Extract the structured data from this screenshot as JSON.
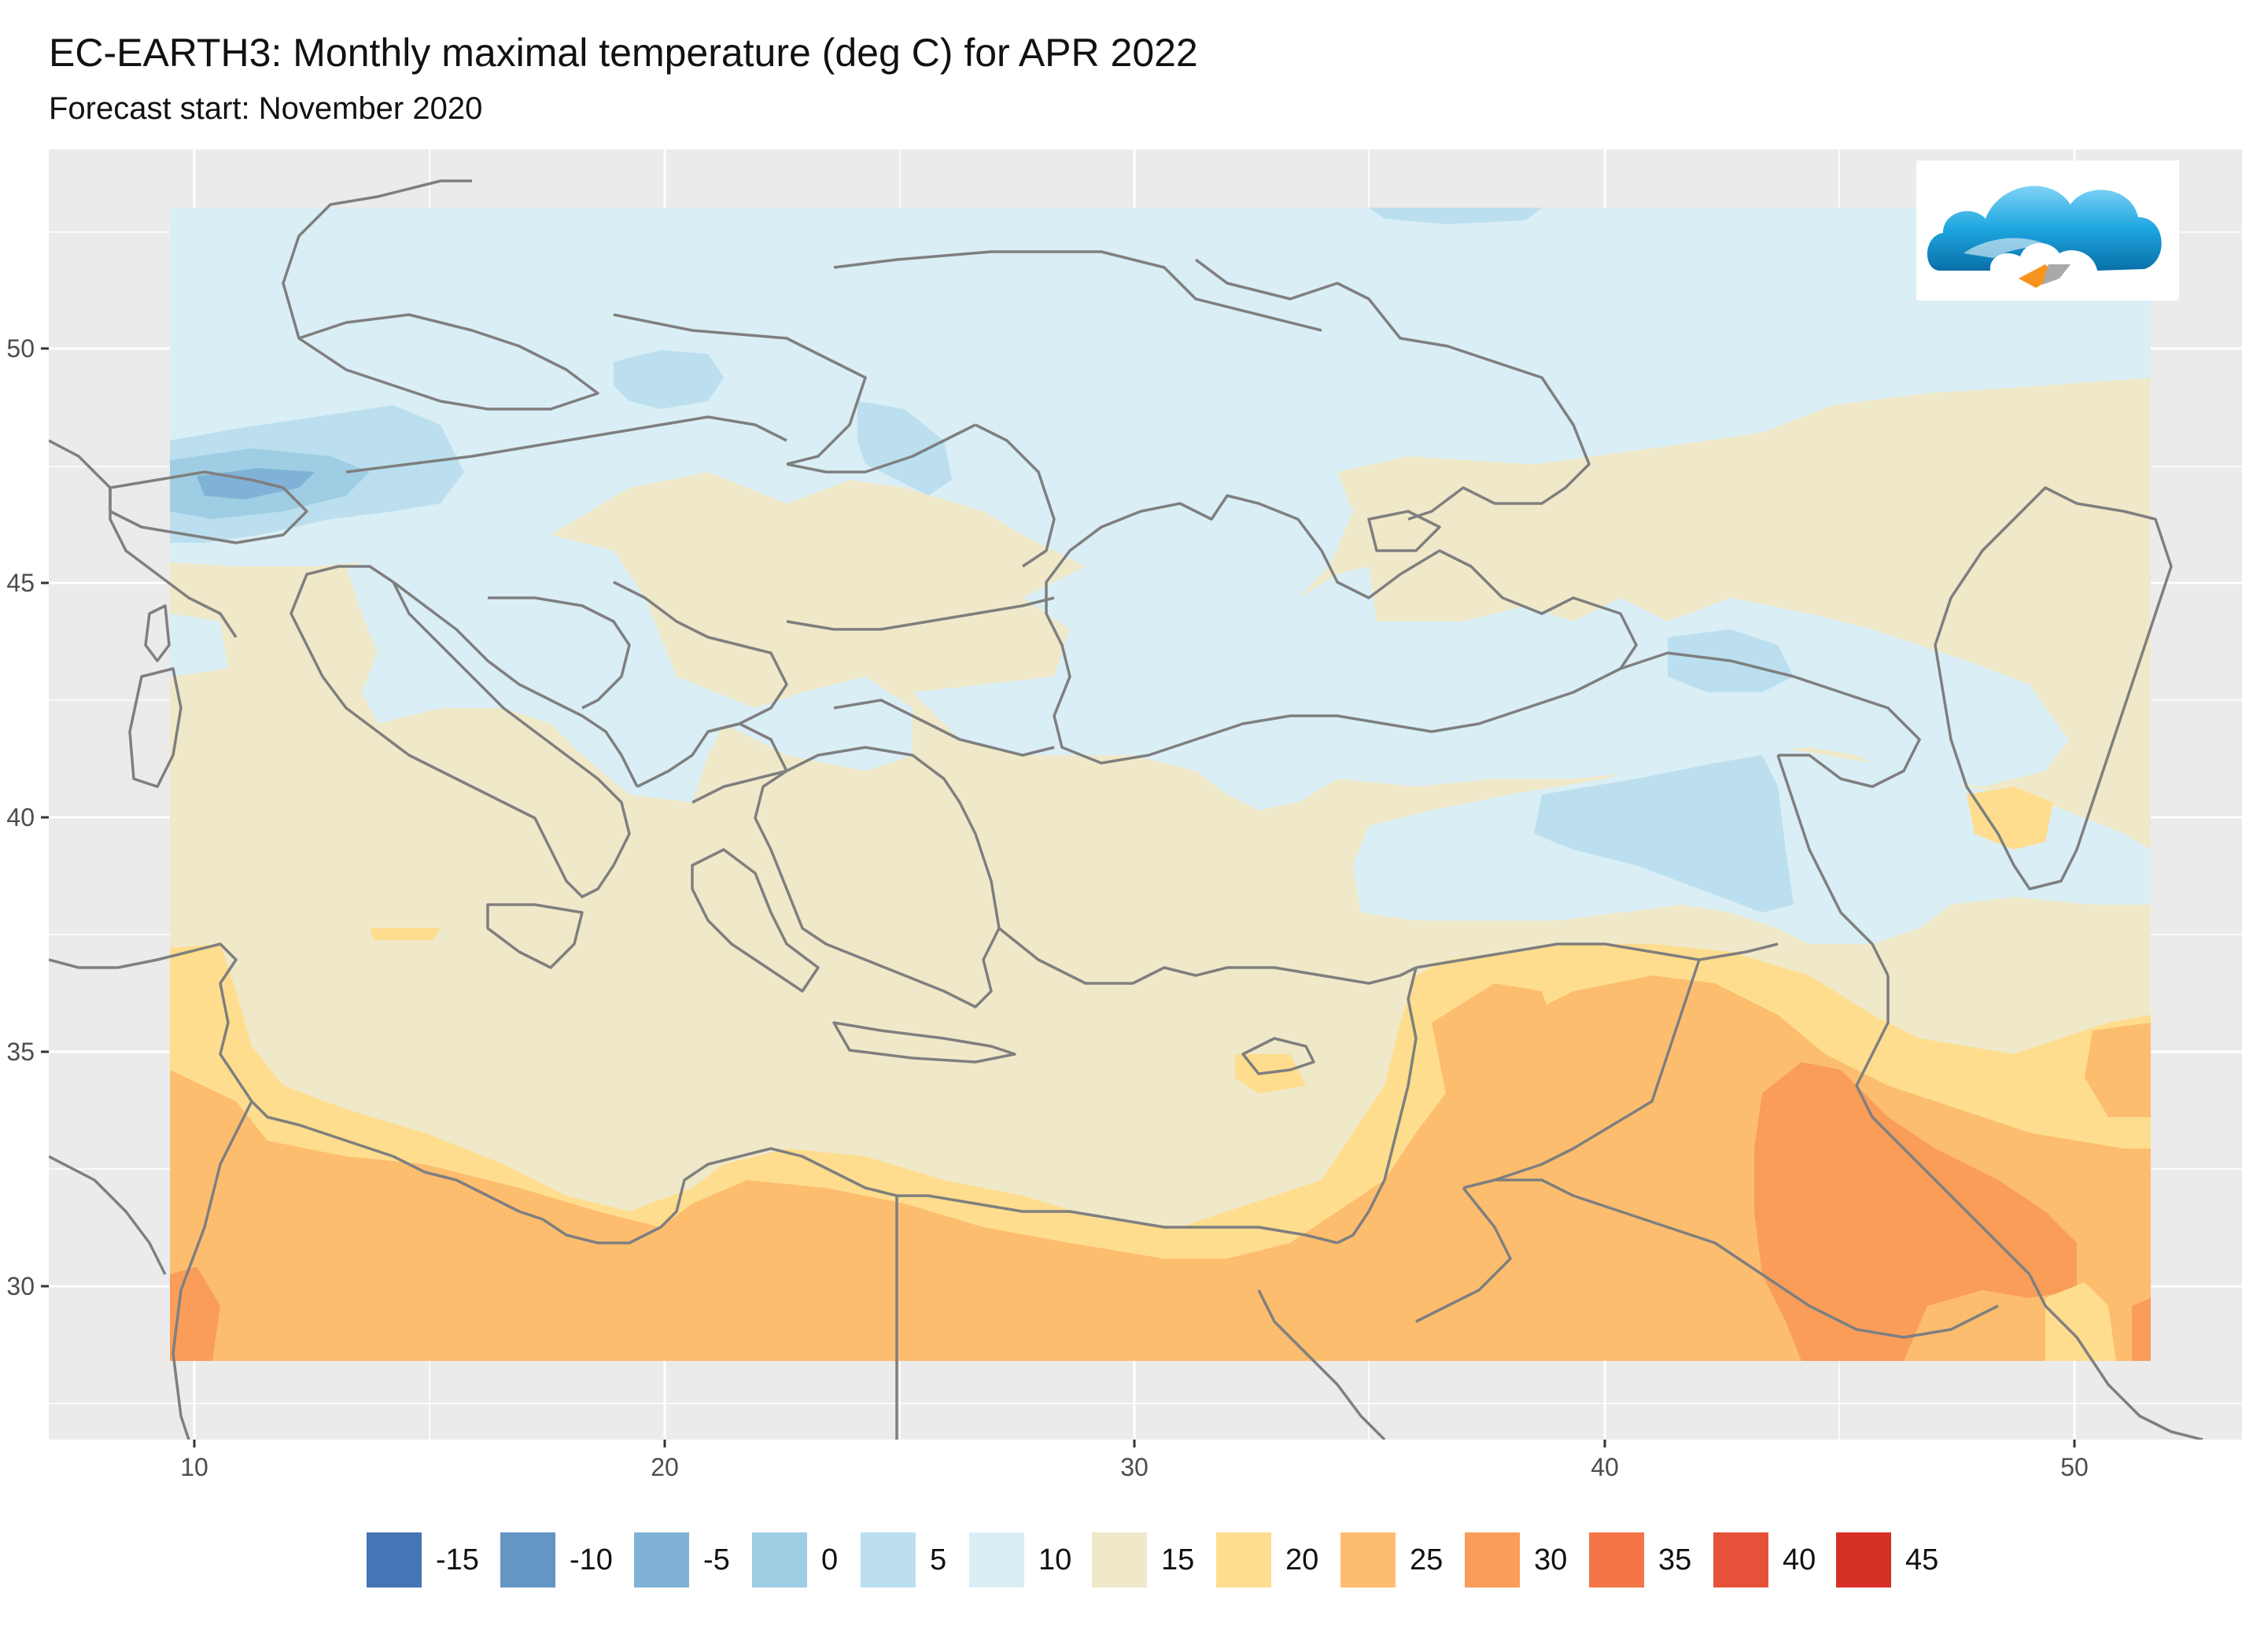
{
  "header": {
    "title": "EC-EARTH3: Monthly maximal temperature (deg C) for APR 2022",
    "subtitle": "Forecast start: November 2020"
  },
  "map": {
    "x_ticks": [
      "10",
      "20",
      "30",
      "40",
      "50"
    ],
    "y_ticks": [
      "50",
      "45",
      "40",
      "35",
      "30"
    ],
    "x_range_deg_lon": [
      7,
      53
    ],
    "y_range_deg_lat": [
      27,
      54
    ],
    "panel_color": "#ebebeb",
    "grid_color": "#ffffff",
    "border_color": "#7f7f7f"
  },
  "legend": {
    "entries": [
      {
        "label": "-15",
        "color": "#4575b4"
      },
      {
        "label": "-10",
        "color": "#6395c5"
      },
      {
        "label": "-5",
        "color": "#7fb2d6"
      },
      {
        "label": "0",
        "color": "#9fcde3"
      },
      {
        "label": "5",
        "color": "#bbdfee"
      },
      {
        "label": "10",
        "color": "#daeef6"
      },
      {
        "label": "15",
        "color": "#efe9c9"
      },
      {
        "label": "20",
        "color": "#fedd8e"
      },
      {
        "label": "25",
        "color": "#fdbd6e"
      },
      {
        "label": "30",
        "color": "#f99d59"
      },
      {
        "label": "35",
        "color": "#f47547"
      },
      {
        "label": "40",
        "color": "#e6513a"
      },
      {
        "label": "45",
        "color": "#d73027"
      }
    ]
  },
  "logo": {
    "icon": "cloud-logo-icon"
  }
}
